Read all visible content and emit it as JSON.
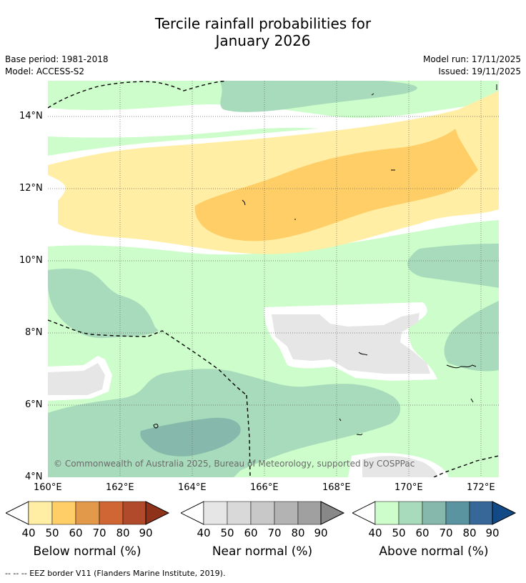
{
  "title_line1": "Tercile rainfall probabilities for",
  "title_line2": "January 2026",
  "base_period": "Base period: 1981-2018",
  "model": "Model: ACCESS-S2",
  "model_run": "Model run: 17/11/2025",
  "issued": "Issued: 19/11/2025",
  "copyright": "© Commonwealth of Australia 2025, Bureau of Meteorology, supported by COSPPac",
  "map": {
    "lat_labels": [
      "14°N",
      "12°N",
      "10°N",
      "8°N",
      "6°N",
      "4°N"
    ],
    "lon_labels": [
      "160°E",
      "162°E",
      "164°E",
      "166°E",
      "168°E",
      "170°E",
      "172°E"
    ]
  },
  "colorbars": [
    {
      "title": "Below normal (%)",
      "ticks": [
        "40",
        "50",
        "60",
        "70",
        "80",
        "90"
      ],
      "colors": [
        "#ffeea3",
        "#ffce67",
        "#e3994a",
        "#cf6633",
        "#b14a2a",
        "#8e3319"
      ]
    },
    {
      "title": "Near normal (%)",
      "ticks": [
        "40",
        "50",
        "60",
        "70",
        "80",
        "90"
      ],
      "colors": [
        "#e6e6e6",
        "#d9d9d9",
        "#c8c8c8",
        "#b3b3b3",
        "#a0a0a0",
        "#888888"
      ]
    },
    {
      "title": "Above normal (%)",
      "ticks": [
        "40",
        "50",
        "60",
        "70",
        "80",
        "90"
      ],
      "colors": [
        "#ccfdca",
        "#a8dbbb",
        "#86b9ac",
        "#5b94a1",
        "#366798",
        "#114a86"
      ]
    }
  ],
  "footer": "--  --  -- EEZ border V11 (Flanders Marine Institute, 2019)."
}
